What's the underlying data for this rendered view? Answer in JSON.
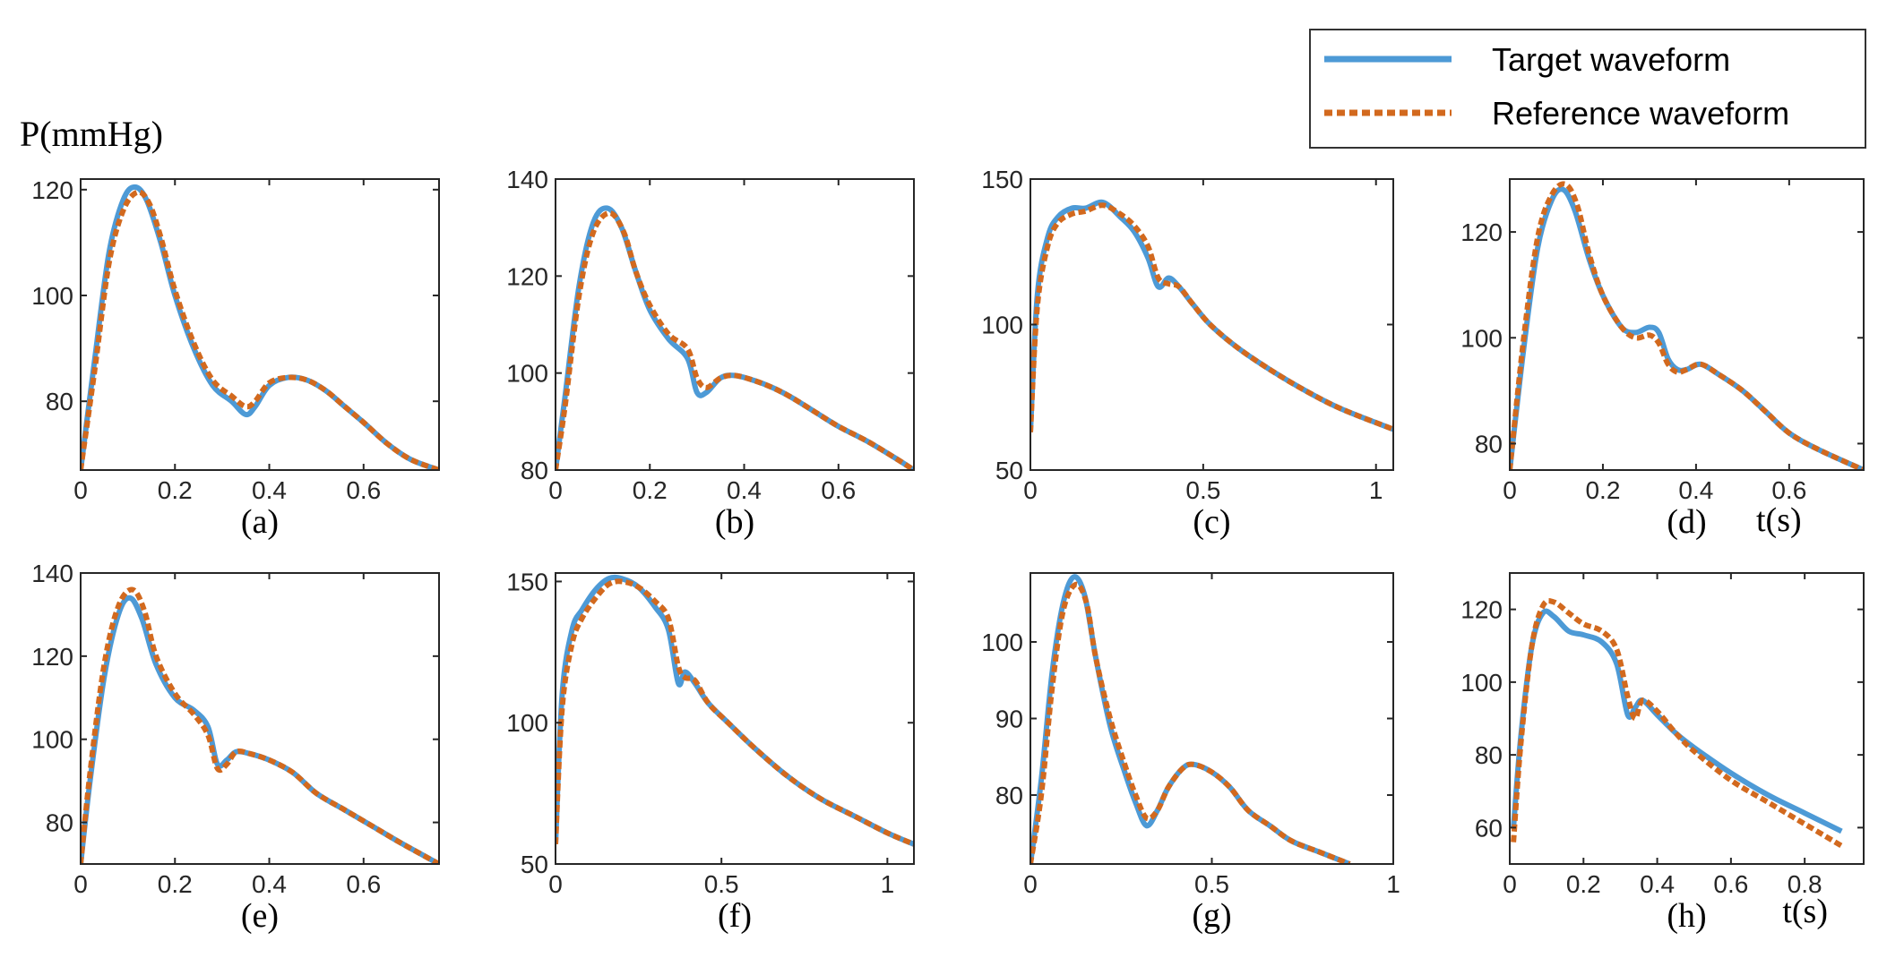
{
  "figure": {
    "y_unit_label": "P(mmHg)",
    "x_unit_label": "t(s)"
  },
  "legend": {
    "placement": "top-right",
    "items": [
      {
        "label": "Target waveform",
        "color": "#4d9ad6",
        "style": "solid"
      },
      {
        "label": "Reference waveform",
        "color": "#d2691e",
        "style": "dotted"
      }
    ]
  },
  "chart_data": [
    {
      "type": "line",
      "panel_label": "(a)",
      "xlim": [
        0,
        0.76
      ],
      "ylim": [
        67,
        122
      ],
      "xticks": [
        0,
        0.2,
        0.4,
        0.6
      ],
      "xtick_labels": [
        "0",
        "0.2",
        "0.4",
        "0.6"
      ],
      "yticks": [
        80,
        100,
        120
      ],
      "ytick_labels": [
        "80",
        "100",
        "120"
      ],
      "series": [
        {
          "name": "Target waveform",
          "x": [
            0,
            0.03,
            0.06,
            0.09,
            0.115,
            0.14,
            0.17,
            0.2,
            0.24,
            0.28,
            0.32,
            0.35,
            0.37,
            0.4,
            0.44,
            0.48,
            0.52,
            0.56,
            0.6,
            0.65,
            0.7,
            0.76
          ],
          "y": [
            67,
            88,
            108,
            118,
            120.5,
            118,
            110,
            100,
            90,
            83,
            80,
            77.5,
            79,
            83,
            84.5,
            84,
            82,
            79,
            76,
            72,
            69,
            67
          ]
        },
        {
          "name": "Reference waveform",
          "x": [
            0,
            0.03,
            0.06,
            0.09,
            0.12,
            0.145,
            0.17,
            0.2,
            0.24,
            0.28,
            0.32,
            0.35,
            0.37,
            0.4,
            0.44,
            0.48,
            0.52,
            0.56,
            0.6,
            0.65,
            0.7,
            0.76
          ],
          "y": [
            67,
            86,
            106,
            116,
            119.5,
            117.5,
            111,
            101,
            91,
            84,
            81,
            79,
            80,
            83.5,
            84.5,
            84,
            82,
            79,
            76,
            72,
            69,
            67
          ]
        }
      ]
    },
    {
      "type": "line",
      "panel_label": "(b)",
      "xlim": [
        0,
        0.76
      ],
      "ylim": [
        80,
        140
      ],
      "xticks": [
        0,
        0.2,
        0.4,
        0.6
      ],
      "xtick_labels": [
        "0",
        "0.2",
        "0.4",
        "0.6"
      ],
      "yticks": [
        80,
        100,
        120,
        140
      ],
      "ytick_labels": [
        "80",
        "100",
        "120",
        "140"
      ],
      "series": [
        {
          "name": "Target waveform",
          "x": [
            0,
            0.02,
            0.05,
            0.08,
            0.11,
            0.14,
            0.17,
            0.2,
            0.24,
            0.28,
            0.3,
            0.32,
            0.35,
            0.38,
            0.42,
            0.46,
            0.5,
            0.55,
            0.6,
            0.66,
            0.72,
            0.76
          ],
          "y": [
            80,
            95,
            118,
            131,
            134,
            130,
            121,
            113,
            107,
            103,
            96,
            96,
            99,
            99.5,
            98.5,
            97,
            95,
            92,
            89,
            86,
            82.5,
            80
          ]
        },
        {
          "name": "Reference waveform",
          "x": [
            0,
            0.02,
            0.05,
            0.08,
            0.115,
            0.145,
            0.17,
            0.2,
            0.24,
            0.28,
            0.3,
            0.32,
            0.35,
            0.38,
            0.42,
            0.46,
            0.5,
            0.55,
            0.6,
            0.66,
            0.72,
            0.76
          ],
          "y": [
            80,
            93,
            116,
            129,
            133,
            129,
            121,
            114,
            108,
            105,
            99,
            97,
            99,
            99.5,
            98.5,
            97,
            95,
            92,
            89,
            86,
            82.5,
            80
          ]
        }
      ]
    },
    {
      "type": "line",
      "panel_label": "(c)",
      "xlim": [
        0,
        1.05
      ],
      "ylim": [
        50,
        150
      ],
      "xticks": [
        0,
        0.5,
        1
      ],
      "xtick_labels": [
        "0",
        "0.5",
        "1"
      ],
      "yticks": [
        50,
        100,
        150
      ],
      "ytick_labels": [
        "50",
        "100",
        "150"
      ],
      "series": [
        {
          "name": "Target waveform",
          "x": [
            0,
            0.02,
            0.05,
            0.08,
            0.12,
            0.16,
            0.21,
            0.26,
            0.3,
            0.34,
            0.37,
            0.4,
            0.43,
            0.47,
            0.52,
            0.6,
            0.7,
            0.8,
            0.9,
            1.05
          ],
          "y": [
            63,
            110,
            130,
            137,
            140,
            140,
            142,
            137,
            132,
            123,
            113,
            116,
            113,
            107,
            100,
            92,
            84,
            77,
            71,
            64
          ]
        },
        {
          "name": "Reference waveform",
          "x": [
            0,
            0.02,
            0.05,
            0.08,
            0.12,
            0.16,
            0.21,
            0.26,
            0.3,
            0.34,
            0.37,
            0.4,
            0.43,
            0.47,
            0.52,
            0.6,
            0.7,
            0.8,
            0.9,
            1.05
          ],
          "y": [
            63,
            106,
            127,
            135,
            138,
            139,
            141,
            138,
            134,
            127,
            116,
            114,
            113,
            107,
            100,
            92,
            84,
            77,
            71,
            64
          ]
        }
      ]
    },
    {
      "type": "line",
      "panel_label": "(d)",
      "xlim": [
        0,
        0.76
      ],
      "ylim": [
        75,
        130
      ],
      "xticks": [
        0,
        0.2,
        0.4,
        0.6
      ],
      "xtick_labels": [
        "0",
        "0.2",
        "0.4",
        "0.6"
      ],
      "yticks": [
        80,
        100,
        120
      ],
      "ytick_labels": [
        "80",
        "100",
        "120"
      ],
      "series": [
        {
          "name": "Target waveform",
          "x": [
            0,
            0.03,
            0.06,
            0.09,
            0.115,
            0.14,
            0.17,
            0.2,
            0.24,
            0.27,
            0.3,
            0.32,
            0.34,
            0.36,
            0.38,
            0.41,
            0.45,
            0.5,
            0.55,
            0.6,
            0.66,
            0.76
          ],
          "y": [
            75,
            98,
            117,
            126,
            128,
            124,
            115,
            108,
            102,
            101,
            102,
            101,
            96,
            94,
            94,
            95,
            93,
            90,
            86,
            82,
            79,
            75
          ]
        },
        {
          "name": "Reference waveform",
          "x": [
            0,
            0.03,
            0.06,
            0.09,
            0.12,
            0.145,
            0.17,
            0.2,
            0.24,
            0.27,
            0.3,
            0.32,
            0.34,
            0.36,
            0.38,
            0.41,
            0.45,
            0.5,
            0.55,
            0.6,
            0.66,
            0.76
          ],
          "y": [
            75,
            100,
            119,
            127,
            129,
            125,
            116,
            108,
            102,
            100,
            100.5,
            99,
            95,
            93.5,
            94,
            95,
            93,
            90,
            86,
            82,
            79,
            75
          ]
        }
      ]
    },
    {
      "type": "line",
      "panel_label": "(e)",
      "xlim": [
        0,
        0.76
      ],
      "ylim": [
        70,
        140
      ],
      "xticks": [
        0,
        0.2,
        0.4,
        0.6
      ],
      "xtick_labels": [
        "0",
        "0.2",
        "0.4",
        "0.6"
      ],
      "yticks": [
        80,
        100,
        120,
        140
      ],
      "ytick_labels": [
        "80",
        "100",
        "120",
        "140"
      ],
      "series": [
        {
          "name": "Target waveform",
          "x": [
            0,
            0.02,
            0.05,
            0.08,
            0.105,
            0.13,
            0.16,
            0.2,
            0.24,
            0.27,
            0.29,
            0.31,
            0.33,
            0.36,
            0.4,
            0.45,
            0.5,
            0.56,
            0.62,
            0.68,
            0.76
          ],
          "y": [
            70,
            90,
            115,
            130,
            134,
            129,
            118,
            110,
            107,
            103,
            94,
            95,
            97,
            96.5,
            95,
            92,
            87,
            83,
            79,
            75,
            70
          ]
        },
        {
          "name": "Reference waveform",
          "x": [
            0,
            0.02,
            0.05,
            0.08,
            0.11,
            0.135,
            0.16,
            0.2,
            0.24,
            0.27,
            0.29,
            0.31,
            0.33,
            0.36,
            0.4,
            0.45,
            0.5,
            0.56,
            0.62,
            0.68,
            0.76
          ],
          "y": [
            70,
            92,
            118,
            132,
            136,
            131,
            120,
            111,
            106,
            101,
            93,
            94,
            97,
            96.5,
            95,
            92,
            87,
            83,
            79,
            75,
            70
          ]
        }
      ]
    },
    {
      "type": "line",
      "panel_label": "(f)",
      "xlim": [
        0,
        1.08
      ],
      "ylim": [
        50,
        153
      ],
      "xticks": [
        0,
        0.5,
        1
      ],
      "xtick_labels": [
        "0",
        "0.5",
        "1"
      ],
      "yticks": [
        50,
        100,
        150
      ],
      "ytick_labels": [
        "50",
        "100",
        "150"
      ],
      "series": [
        {
          "name": "Target waveform",
          "x": [
            0,
            0.02,
            0.05,
            0.08,
            0.12,
            0.16,
            0.2,
            0.25,
            0.3,
            0.34,
            0.37,
            0.39,
            0.42,
            0.46,
            0.52,
            0.6,
            0.7,
            0.8,
            0.9,
            1.0,
            1.08
          ],
          "y": [
            57,
            110,
            133,
            140,
            147,
            151,
            151,
            148,
            141,
            133,
            114,
            118,
            114,
            107,
            100,
            91,
            81,
            73,
            67,
            61,
            57
          ]
        },
        {
          "name": "Reference waveform",
          "x": [
            0,
            0.02,
            0.05,
            0.08,
            0.12,
            0.16,
            0.2,
            0.25,
            0.3,
            0.34,
            0.37,
            0.39,
            0.42,
            0.46,
            0.52,
            0.6,
            0.7,
            0.8,
            0.9,
            1.0,
            1.08
          ],
          "y": [
            57,
            105,
            128,
            137,
            144,
            149,
            150,
            148,
            143,
            137,
            120,
            116,
            115,
            107,
            100,
            91,
            81,
            73,
            67,
            61,
            57
          ]
        }
      ]
    },
    {
      "type": "line",
      "panel_label": "(g)",
      "xlim": [
        0,
        1
      ],
      "ylim": [
        71,
        109
      ],
      "xticks": [
        0,
        0.5,
        1
      ],
      "xtick_labels": [
        "0",
        "0.5",
        "1"
      ],
      "yticks": [
        80,
        90,
        100
      ],
      "ytick_labels": [
        "80",
        "90",
        "100"
      ],
      "series": [
        {
          "name": "Target waveform",
          "x": [
            0,
            0.03,
            0.06,
            0.09,
            0.12,
            0.15,
            0.18,
            0.22,
            0.26,
            0.29,
            0.32,
            0.35,
            0.38,
            0.42,
            0.45,
            0.5,
            0.55,
            0.6,
            0.66,
            0.72,
            0.8,
            0.88
          ],
          "y": [
            71,
            82,
            96,
            105,
            108.5,
            106,
            98,
            89,
            83,
            79,
            76,
            78,
            81,
            83.5,
            84,
            83,
            81,
            78,
            76,
            74,
            72.5,
            71
          ]
        },
        {
          "name": "Reference waveform",
          "x": [
            0,
            0.03,
            0.06,
            0.09,
            0.125,
            0.155,
            0.18,
            0.22,
            0.26,
            0.29,
            0.32,
            0.35,
            0.38,
            0.42,
            0.45,
            0.5,
            0.55,
            0.6,
            0.66,
            0.72,
            0.8,
            0.88
          ],
          "y": [
            71,
            80,
            94,
            104,
            107.5,
            105,
            98,
            90,
            84,
            80,
            77,
            78,
            81,
            83.5,
            84,
            83,
            81,
            78,
            76,
            74,
            72.5,
            71
          ]
        }
      ]
    },
    {
      "type": "line",
      "panel_label": "(h)",
      "xlim": [
        0,
        0.96
      ],
      "ylim": [
        50,
        130
      ],
      "xticks": [
        0,
        0.2,
        0.4,
        0.6,
        0.8
      ],
      "xtick_labels": [
        "0",
        "0.2",
        "0.4",
        "0.6",
        "0.8"
      ],
      "yticks": [
        60,
        80,
        100,
        120
      ],
      "ytick_labels": [
        "60",
        "80",
        "100",
        "120"
      ],
      "series": [
        {
          "name": "Target waveform",
          "x": [
            0.01,
            0.03,
            0.06,
            0.09,
            0.12,
            0.16,
            0.2,
            0.25,
            0.29,
            0.32,
            0.34,
            0.36,
            0.4,
            0.45,
            0.5,
            0.6,
            0.7,
            0.8,
            0.9
          ],
          "y": [
            60,
            85,
            110,
            119,
            118,
            114,
            113,
            111,
            105,
            91,
            93,
            95,
            91,
            86,
            82,
            75,
            69,
            64,
            59
          ]
        },
        {
          "name": "Reference waveform",
          "x": [
            0.01,
            0.03,
            0.06,
            0.09,
            0.12,
            0.16,
            0.2,
            0.25,
            0.29,
            0.32,
            0.34,
            0.36,
            0.4,
            0.45,
            0.5,
            0.6,
            0.7,
            0.8,
            0.9
          ],
          "y": [
            56,
            83,
            110,
            121,
            122,
            119,
            116,
            114,
            109,
            96,
            90,
            95,
            92,
            86,
            81,
            73,
            67,
            61,
            55
          ]
        }
      ]
    }
  ]
}
